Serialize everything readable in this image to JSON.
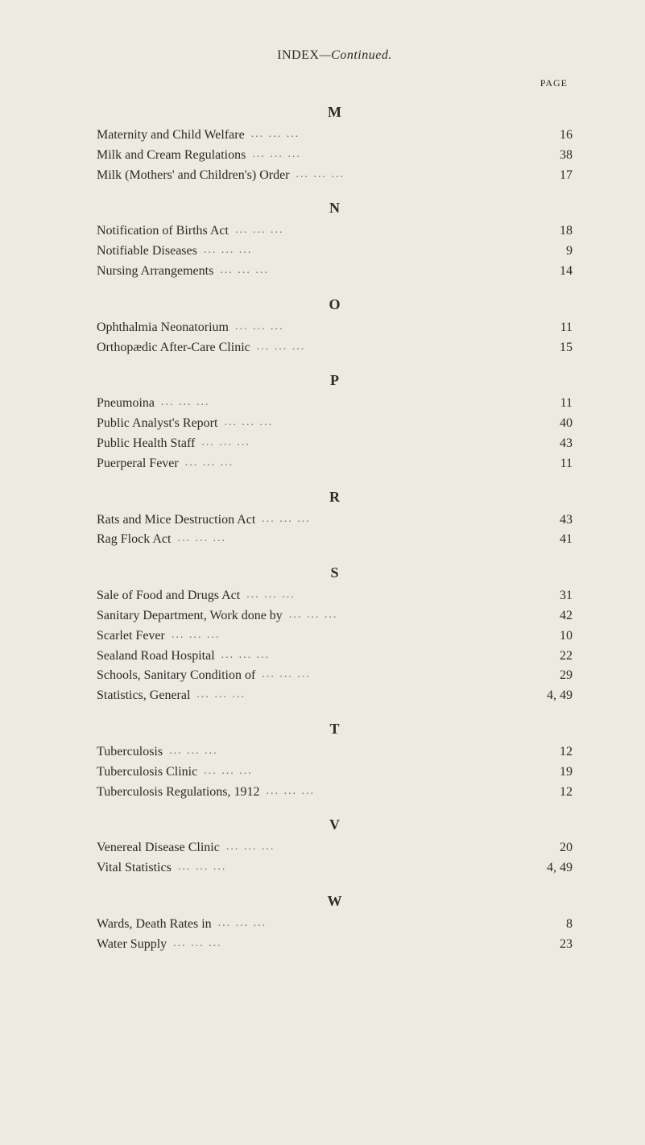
{
  "header": {
    "index_label": "INDEX",
    "continued_label": "—Continued."
  },
  "page_column_label": "PAGE",
  "sections": [
    {
      "letter": "M",
      "entries": [
        {
          "label": "Maternity and Child Welfare",
          "page": "16"
        },
        {
          "label": "Milk and Cream Regulations",
          "page": "38"
        },
        {
          "label": "Milk (Mothers' and Children's) Order",
          "page": "17"
        }
      ]
    },
    {
      "letter": "N",
      "entries": [
        {
          "label": "Notification of Births Act",
          "page": "18"
        },
        {
          "label": "Notifiable Diseases",
          "page": "9"
        },
        {
          "label": "Nursing Arrangements",
          "page": "14"
        }
      ]
    },
    {
      "letter": "O",
      "entries": [
        {
          "label": "Ophthalmia Neonatorium",
          "page": "11"
        },
        {
          "label": "Orthopædic After-Care Clinic",
          "page": "15"
        }
      ]
    },
    {
      "letter": "P",
      "entries": [
        {
          "label": "Pneumoina",
          "page": "11"
        },
        {
          "label": "Public Analyst's Report",
          "page": "40"
        },
        {
          "label": "Public Health Staff",
          "page": "43"
        },
        {
          "label": "Puerperal Fever",
          "page": "11"
        }
      ]
    },
    {
      "letter": "R",
      "entries": [
        {
          "label": "Rats and Mice Destruction Act",
          "page": "43"
        },
        {
          "label": "Rag Flock Act",
          "page": "41"
        }
      ]
    },
    {
      "letter": "S",
      "entries": [
        {
          "label": "Sale of Food and Drugs Act",
          "page": "31"
        },
        {
          "label": "Sanitary Department, Work done by",
          "page": "42"
        },
        {
          "label": "Scarlet Fever",
          "page": "10"
        },
        {
          "label": "Sealand Road Hospital",
          "page": "22"
        },
        {
          "label": "Schools, Sanitary Condition of",
          "page": "29"
        },
        {
          "label": "Statistics, General",
          "page": "4, 49"
        }
      ]
    },
    {
      "letter": "T",
      "entries": [
        {
          "label": "Tuberculosis",
          "page": "12"
        },
        {
          "label": "Tuberculosis Clinic",
          "page": "19"
        },
        {
          "label": "Tuberculosis Regulations, 1912",
          "page": "12"
        }
      ]
    },
    {
      "letter": "V",
      "entries": [
        {
          "label": "Venereal Disease Clinic",
          "page": "20"
        },
        {
          "label": "Vital Statistics",
          "page": "4, 49"
        }
      ]
    },
    {
      "letter": "W",
      "entries": [
        {
          "label": "Wards, Death Rates in",
          "page": "8"
        },
        {
          "label": "Water Supply",
          "page": "23"
        }
      ]
    }
  ]
}
